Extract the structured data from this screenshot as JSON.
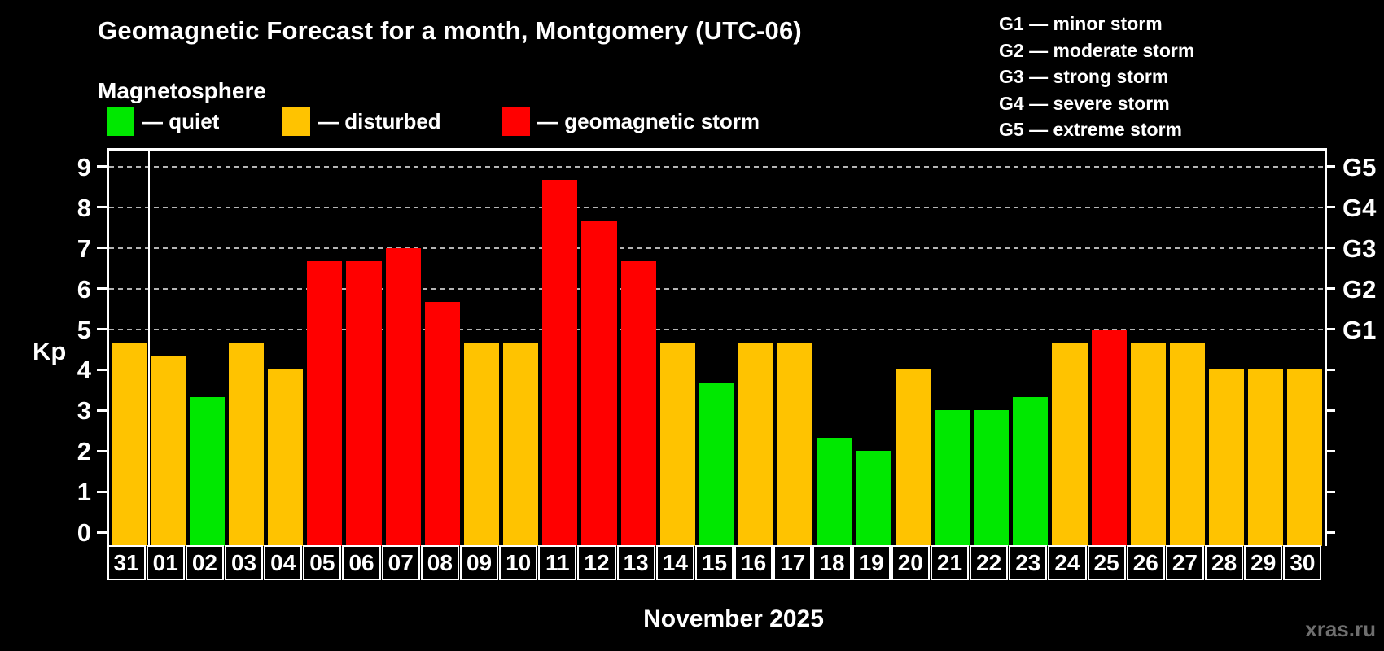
{
  "title": "Geomagnetic Forecast for a month, Montgomery (UTC-06)",
  "subtitle": "Magnetosphere",
  "legend": {
    "items": [
      {
        "key": "quiet",
        "label": "— quiet",
        "color": "#00e800"
      },
      {
        "key": "disturbed",
        "label": "— disturbed",
        "color": "#ffc300"
      },
      {
        "key": "storm",
        "label": "— geomagnetic storm",
        "color": "#ff0000"
      }
    ]
  },
  "g_legend": [
    "G1 — minor storm",
    "G2 — moderate storm",
    "G3 — strong storm",
    "G4 — severe storm",
    "G5 — extreme storm"
  ],
  "axes": {
    "y_label": "Kp",
    "y_ticks": [
      0,
      1,
      2,
      3,
      4,
      5,
      6,
      7,
      8,
      9
    ],
    "right_labels": [
      {
        "kp": 9,
        "label": "G5"
      },
      {
        "kp": 8,
        "label": "G4"
      },
      {
        "kp": 7,
        "label": "G3"
      },
      {
        "kp": 6,
        "label": "G2"
      },
      {
        "kp": 5,
        "label": "G1"
      }
    ],
    "x_label": "November 2025"
  },
  "watermark": "xras.ru",
  "colors": {
    "background": "#000000",
    "text": "#ffffff",
    "grid": "#b4b4b4",
    "watermark": "#6e6e6e",
    "quiet": "#00e800",
    "disturbed": "#ffc300",
    "storm": "#ff0000"
  },
  "chart_data": {
    "type": "bar",
    "title": "Geomagnetic Forecast for a month, Montgomery (UTC-06)",
    "xlabel": "November 2025",
    "ylabel": "Kp",
    "ylim": [
      0,
      9
    ],
    "grid": "dashed horizontal at Kp 5-9 (G1-G5)",
    "legend_position": "top",
    "categories": [
      "31",
      "01",
      "02",
      "03",
      "04",
      "05",
      "06",
      "07",
      "08",
      "09",
      "10",
      "11",
      "12",
      "13",
      "14",
      "15",
      "16",
      "17",
      "18",
      "19",
      "20",
      "21",
      "22",
      "23",
      "24",
      "25",
      "26",
      "27",
      "28",
      "29",
      "30"
    ],
    "values": [
      4.67,
      4.33,
      3.33,
      4.67,
      4.0,
      6.67,
      6.67,
      7.0,
      5.67,
      4.67,
      4.67,
      8.67,
      7.67,
      6.67,
      4.67,
      3.67,
      4.67,
      4.67,
      2.33,
      2.0,
      4.0,
      3.0,
      3.0,
      3.33,
      4.67,
      5.0,
      4.67,
      4.67,
      4.0,
      4.0,
      4.0
    ],
    "statuses": [
      "disturbed",
      "disturbed",
      "quiet",
      "disturbed",
      "disturbed",
      "storm",
      "storm",
      "storm",
      "storm",
      "disturbed",
      "disturbed",
      "storm",
      "storm",
      "storm",
      "disturbed",
      "quiet",
      "disturbed",
      "disturbed",
      "quiet",
      "quiet",
      "disturbed",
      "quiet",
      "quiet",
      "quiet",
      "disturbed",
      "storm",
      "disturbed",
      "disturbed",
      "disturbed",
      "disturbed",
      "disturbed"
    ],
    "month_separator_after_index": 0
  }
}
